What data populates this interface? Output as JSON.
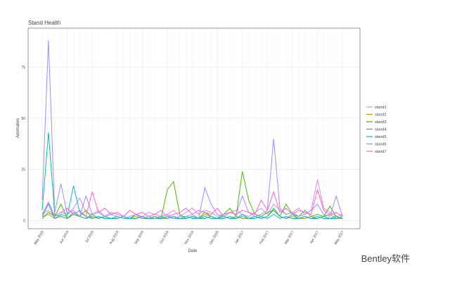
{
  "chart_data": {
    "type": "line",
    "title": "Stand Health",
    "x_label": "Date",
    "y_label": "Anomalies",
    "categories": [
      "May 2016",
      null,
      null,
      null,
      "Jun 2016",
      null,
      null,
      null,
      "Jul 2016",
      null,
      null,
      null,
      "Aug 2016",
      null,
      null,
      null,
      "Sep 2016",
      null,
      null,
      null,
      "Oct 2016",
      null,
      null,
      null,
      "Nov 2016",
      null,
      null,
      null,
      "Dec 2016",
      null,
      null,
      null,
      "Jan 2017",
      null,
      null,
      null,
      "Feb 2017",
      null,
      null,
      null,
      "Mar 2017",
      null,
      null,
      null,
      "Apr 2017",
      null,
      null,
      null,
      "May 2017"
    ],
    "series": [
      {
        "name": "stand1",
        "color": "#d98be0",
        "values": [
          3,
          5,
          2,
          4,
          3,
          6,
          11,
          4,
          3,
          5,
          2,
          4,
          3,
          2,
          5,
          3,
          2,
          4,
          3,
          2,
          3,
          5,
          2,
          4,
          6,
          3,
          5,
          4,
          2,
          3,
          4,
          5,
          3,
          2,
          4,
          6,
          3,
          8,
          5,
          3,
          4,
          6,
          3,
          5,
          20,
          6,
          4,
          2,
          3
        ]
      },
      {
        "name": "stand2",
        "color": "#c49a00",
        "values": [
          2,
          3,
          1,
          2,
          1,
          3,
          2,
          1,
          2,
          1,
          2,
          1,
          1,
          2,
          1,
          2,
          1,
          1,
          2,
          1,
          1,
          2,
          1,
          1,
          2,
          1,
          3,
          2,
          1,
          2,
          1,
          2,
          1,
          1,
          2,
          1,
          2,
          5,
          2,
          1,
          2,
          1,
          1,
          2,
          1,
          2,
          3,
          1,
          1
        ]
      },
      {
        "name": "stand3",
        "color": "#53b400",
        "values": [
          1,
          4,
          2,
          8,
          1,
          3,
          2,
          5,
          1,
          2,
          1,
          1,
          2,
          1,
          1,
          3,
          1,
          1,
          2,
          1,
          15,
          19,
          3,
          1,
          2,
          1,
          4,
          2,
          1,
          3,
          6,
          2,
          24,
          10,
          3,
          2,
          4,
          5,
          2,
          8,
          3,
          2,
          5,
          2,
          3,
          2,
          7,
          2,
          1
        ]
      },
      {
        "name": "stand4",
        "color": "#00c094",
        "values": [
          5,
          43,
          3,
          2,
          1,
          4,
          2,
          1,
          3,
          1,
          2,
          1,
          1,
          2,
          1,
          1,
          2,
          1,
          1,
          2,
          1,
          2,
          1,
          1,
          2,
          1,
          1,
          2,
          1,
          1,
          2,
          1,
          3,
          1,
          2,
          1,
          2,
          6,
          2,
          1,
          3,
          1,
          2,
          1,
          2,
          1,
          1,
          2,
          1
        ]
      },
      {
        "name": "stand5",
        "color": "#00b6eb",
        "values": [
          2,
          8,
          1,
          3,
          2,
          17,
          4,
          2,
          1,
          2,
          1,
          1,
          2,
          1,
          1,
          1,
          2,
          1,
          1,
          1,
          2,
          1,
          1,
          2,
          1,
          1,
          2,
          1,
          1,
          2,
          1,
          1,
          2,
          1,
          1,
          2,
          1,
          3,
          1,
          2,
          1,
          1,
          2,
          1,
          1,
          2,
          1,
          1,
          2
        ]
      },
      {
        "name": "stand6",
        "color": "#a58aff",
        "values": [
          10,
          88,
          4,
          18,
          3,
          5,
          2,
          12,
          3,
          4,
          2,
          3,
          2,
          1,
          2,
          3,
          1,
          2,
          1,
          2,
          3,
          1,
          2,
          2,
          3,
          1,
          16,
          8,
          3,
          2,
          4,
          3,
          12,
          4,
          2,
          3,
          5,
          40,
          6,
          3,
          4,
          2,
          3,
          5,
          8,
          3,
          2,
          12,
          2
        ]
      },
      {
        "name": "stand7",
        "color": "#fb61d7",
        "values": [
          3,
          9,
          2,
          4,
          6,
          3,
          5,
          2,
          14,
          4,
          6,
          3,
          4,
          2,
          5,
          3,
          4,
          2,
          3,
          5,
          2,
          3,
          4,
          6,
          3,
          5,
          4,
          3,
          6,
          2,
          4,
          3,
          5,
          4,
          3,
          10,
          5,
          14,
          4,
          6,
          3,
          5,
          4,
          3,
          15,
          5,
          3,
          4,
          2
        ]
      }
    ],
    "ylim": [
      -4,
      94
    ],
    "yticks": [
      0,
      25,
      50,
      75
    ],
    "grid": true,
    "legend": "right"
  },
  "watermark": "Bentley软件"
}
